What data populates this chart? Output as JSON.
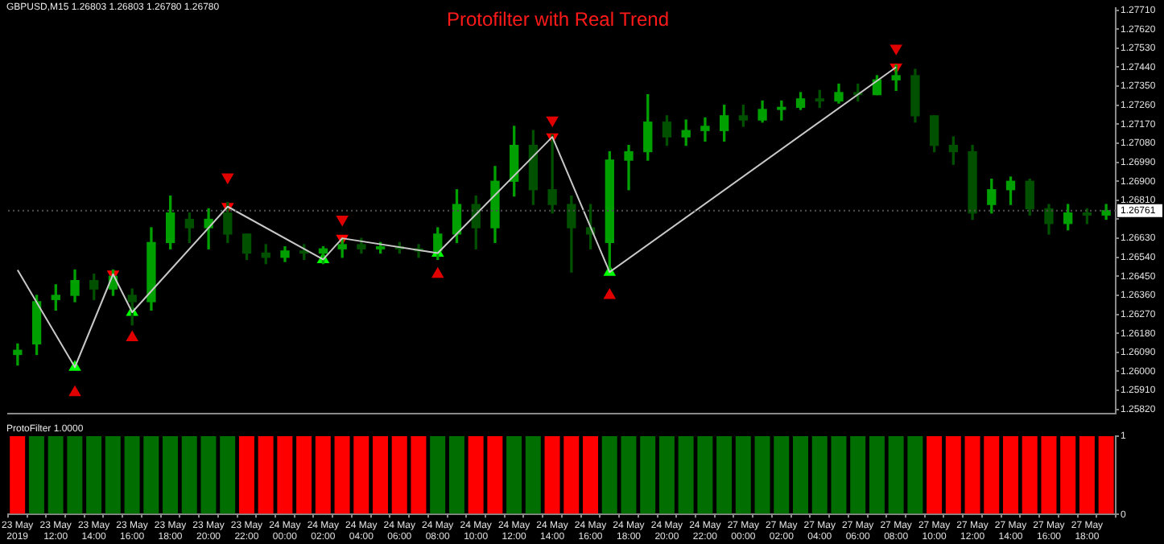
{
  "chart_data": [
    {
      "type": "candlestick",
      "title": "Protofilter with Real Trend",
      "subtitle": "GBPUSD,M15 1.26803 1.26803 1.26780 1.26780",
      "colors": [
        "#00a000",
        "#00a000",
        "#00a000",
        "#00a000",
        "#005000",
        "#00a000",
        "#005000",
        "#00a000",
        "#00a000",
        "#005000",
        "#00a000",
        "#005000",
        "#005000",
        "#005000",
        "#00a000",
        "#005000",
        "#00a000",
        "#00a000",
        "#005000",
        "#00a000",
        "#005000",
        "#005000",
        "#00a000",
        "#00a000",
        "#005000",
        "#00a000",
        "#00a000",
        "#005000",
        "#005000",
        "#005000",
        "#005000",
        "#00a000",
        "#00a000",
        "#00a000",
        "#005000",
        "#00a000",
        "#00a000",
        "#00a000",
        "#005000",
        "#00a000",
        "#00a000",
        "#00a000",
        "#005000",
        "#00a000",
        "#005000",
        "#00a000",
        "#00a000",
        "#005000",
        "#005000",
        "#005000",
        "#005000",
        "#00a000",
        "#00a000",
        "#005000",
        "#005000",
        "#00a000",
        "#005000",
        "#00a000"
      ],
      "ohlc": [
        [
          1.2608,
          1.2613,
          1.2603,
          1.261
        ],
        [
          1.2613,
          1.2636,
          1.2608,
          1.2633
        ],
        [
          1.2634,
          1.2641,
          1.2629,
          1.2636
        ],
        [
          1.2636,
          1.2648,
          1.2633,
          1.2643
        ],
        [
          1.2643,
          1.2646,
          1.2634,
          1.2639
        ],
        [
          1.2639,
          1.2648,
          1.2636,
          1.2645
        ],
        [
          1.2636,
          1.2639,
          1.2622,
          1.2633
        ],
        [
          1.2633,
          1.2668,
          1.2629,
          1.2661
        ],
        [
          1.2661,
          1.2683,
          1.2658,
          1.2675
        ],
        [
          1.2672,
          1.2675,
          1.2661,
          1.2668
        ],
        [
          1.2668,
          1.2677,
          1.2658,
          1.2672
        ],
        [
          1.2675,
          1.268,
          1.2661,
          1.2665
        ],
        [
          1.2665,
          1.2665,
          1.2653,
          1.2656
        ],
        [
          1.2656,
          1.266,
          1.2651,
          1.2654
        ],
        [
          1.2654,
          1.2659,
          1.2652,
          1.2657
        ],
        [
          1.2657,
          1.266,
          1.2653,
          1.2656
        ],
        [
          1.2656,
          1.2659,
          1.2651,
          1.2658
        ],
        [
          1.2658,
          1.2663,
          1.2654,
          1.266
        ],
        [
          1.266,
          1.2663,
          1.2656,
          1.2658
        ],
        [
          1.2658,
          1.2661,
          1.2656,
          1.2659
        ],
        [
          1.2659,
          1.2661,
          1.2656,
          1.2658
        ],
        [
          1.2658,
          1.266,
          1.2654,
          1.2657
        ],
        [
          1.2657,
          1.2668,
          1.2653,
          1.2665
        ],
        [
          1.2665,
          1.2686,
          1.2661,
          1.2679
        ],
        [
          1.2679,
          1.2683,
          1.2658,
          1.2668
        ],
        [
          1.2668,
          1.2697,
          1.2661,
          1.269
        ],
        [
          1.269,
          1.2716,
          1.2683,
          1.2707
        ],
        [
          1.2707,
          1.2714,
          1.2679,
          1.2686
        ],
        [
          1.2686,
          1.2712,
          1.2675,
          1.2679
        ],
        [
          1.2679,
          1.2683,
          1.2647,
          1.2668
        ],
        [
          1.2668,
          1.2679,
          1.2658,
          1.2665
        ],
        [
          1.2661,
          1.2704,
          1.2648,
          1.27
        ],
        [
          1.27,
          1.2707,
          1.2686,
          1.2704
        ],
        [
          1.2704,
          1.2731,
          1.27,
          1.2718
        ],
        [
          1.2718,
          1.2721,
          1.2707,
          1.2711
        ],
        [
          1.2711,
          1.2719,
          1.2707,
          1.2714
        ],
        [
          1.2714,
          1.272,
          1.2709,
          1.2716
        ],
        [
          1.2714,
          1.2726,
          1.2709,
          1.2721
        ],
        [
          1.2721,
          1.2726,
          1.2716,
          1.2719
        ],
        [
          1.2719,
          1.2728,
          1.2718,
          1.2724
        ],
        [
          1.2724,
          1.2728,
          1.2719,
          1.2725
        ],
        [
          1.2725,
          1.2732,
          1.2724,
          1.2729
        ],
        [
          1.2729,
          1.2733,
          1.2725,
          1.2728
        ],
        [
          1.2728,
          1.2736,
          1.2727,
          1.2732
        ],
        [
          1.2732,
          1.2736,
          1.2728,
          1.2731
        ],
        [
          1.2731,
          1.274,
          1.2731,
          1.2738
        ],
        [
          1.2738,
          1.2745,
          1.2733,
          1.274
        ],
        [
          1.274,
          1.2743,
          1.2718,
          1.2721
        ],
        [
          1.2721,
          1.2721,
          1.2704,
          1.2707
        ],
        [
          1.2707,
          1.2711,
          1.2698,
          1.2704
        ],
        [
          1.2704,
          1.2707,
          1.2672,
          1.2675
        ],
        [
          1.2679,
          1.2691,
          1.2675,
          1.2686
        ],
        [
          1.2686,
          1.2692,
          1.2679,
          1.269
        ],
        [
          1.269,
          1.2691,
          1.2674,
          1.2677
        ],
        [
          1.2677,
          1.2679,
          1.2665,
          1.267
        ],
        [
          1.267,
          1.2679,
          1.2667,
          1.2675
        ],
        [
          1.2675,
          1.2677,
          1.267,
          1.2674
        ],
        [
          1.2674,
          1.2679,
          1.2672,
          1.26761
        ]
      ],
      "series": [
        {
          "type": "line",
          "color": "#c8c8c8",
          "marker": "none",
          "values": [
            1.2648,
            null,
            null,
            1.2602,
            null,
            1.2646,
            1.2628,
            null,
            null,
            null,
            null,
            1.2678,
            null,
            null,
            null,
            null,
            1.2653,
            1.2663,
            null,
            null,
            null,
            null,
            1.2656,
            null,
            null,
            null,
            null,
            null,
            1.2711,
            null,
            null,
            1.2647,
            null,
            null,
            null,
            null,
            null,
            null,
            null,
            null,
            null,
            null,
            null,
            null,
            null,
            null,
            1.2744,
            null,
            null,
            null,
            null,
            null,
            null,
            null,
            null,
            null,
            null,
            null
          ]
        },
        {
          "type": "scatter",
          "marker": "triangle",
          "values": [
            null,
            null,
            null,
            1.2602,
            null,
            1.2646,
            1.2628,
            null,
            null,
            null,
            null,
            1.2678,
            null,
            null,
            null,
            null,
            1.2653,
            1.2663,
            null,
            null,
            null,
            null,
            1.2656,
            null,
            null,
            null,
            null,
            null,
            1.2711,
            null,
            null,
            1.2647,
            null,
            null,
            null,
            null,
            null,
            null,
            null,
            null,
            null,
            null,
            null,
            null,
            null,
            null,
            1.2744,
            null,
            null,
            null,
            null,
            null,
            null,
            null,
            null,
            null,
            null,
            null
          ],
          "colors": [
            null,
            null,
            null,
            "#00ff00",
            null,
            "#ff0000",
            "#00ff00",
            null,
            null,
            null,
            null,
            "#ff0000",
            null,
            null,
            null,
            null,
            "#00ff00",
            "#ff0000",
            null,
            null,
            null,
            null,
            "#00ff00",
            null,
            null,
            null,
            null,
            null,
            "#ff0000",
            null,
            null,
            "#00ff00",
            null,
            null,
            null,
            null,
            null,
            null,
            null,
            null,
            null,
            null,
            null,
            null,
            null,
            null,
            "#ff0000",
            null,
            null,
            null,
            null,
            null,
            null,
            null,
            null,
            null,
            null,
            null
          ]
        },
        {
          "type": "scatter",
          "marker": "triangle",
          "color": "#e00000",
          "values": [
            null,
            null,
            null,
            1.259,
            null,
            null,
            1.2616,
            null,
            null,
            null,
            null,
            1.2692,
            null,
            null,
            null,
            null,
            null,
            1.2672,
            null,
            null,
            null,
            null,
            1.2646,
            null,
            null,
            null,
            null,
            null,
            1.2719,
            null,
            null,
            1.2636,
            null,
            null,
            null,
            null,
            null,
            null,
            null,
            null,
            null,
            null,
            null,
            null,
            null,
            null,
            1.2753,
            null,
            null,
            null,
            null,
            null,
            null,
            null,
            null,
            null,
            null,
            null
          ]
        }
      ],
      "ylim": [
        1.258,
        1.2772
      ],
      "yticks": [
        {
          "value": 1.2582,
          "label": "1.25820"
        },
        {
          "value": 1.2591,
          "label": "1.25910"
        },
        {
          "value": 1.26,
          "label": "1.26000"
        },
        {
          "value": 1.2609,
          "label": "1.26090"
        },
        {
          "value": 1.2618,
          "label": "1.26180"
        },
        {
          "value": 1.2627,
          "label": "1.26270"
        },
        {
          "value": 1.2636,
          "label": "1.26360"
        },
        {
          "value": 1.2645,
          "label": "1.26450"
        },
        {
          "value": 1.2654,
          "label": "1.26540"
        },
        {
          "value": 1.2663,
          "label": "1.26630"
        },
        {
          "value": 1.2672,
          "label": null
        },
        {
          "value": 1.2681,
          "label": "1.26810"
        },
        {
          "value": 1.269,
          "label": "1.26900"
        },
        {
          "value": 1.2699,
          "label": "1.26990"
        },
        {
          "value": 1.2708,
          "label": "1.27080"
        },
        {
          "value": 1.2717,
          "label": "1.27170"
        },
        {
          "value": 1.2726,
          "label": "1.27260"
        },
        {
          "value": 1.2735,
          "label": "1.27350"
        },
        {
          "value": 1.2744,
          "label": "1.27440"
        },
        {
          "value": 1.2753,
          "label": "1.27530"
        },
        {
          "value": 1.2762,
          "label": "1.27620"
        },
        {
          "value": 1.2771,
          "label": "1.27710"
        }
      ],
      "ref_lines": [
        {
          "axis": "y",
          "value": 1.26761,
          "label": "1.26761",
          "color": "#505050",
          "line_style": "dotted"
        }
      ],
      "tick_labels": "y"
    },
    {
      "type": "bar",
      "title": "ProtoFilter 1.0000",
      "categories": [
        "23 May 2019",
        null,
        "23 May 12:00",
        null,
        "23 May 14:00",
        null,
        "23 May 16:00",
        null,
        "23 May 18:00",
        null,
        "23 May 20:00",
        null,
        "23 May 22:00",
        null,
        "24 May 00:00",
        null,
        "24 May 02:00",
        null,
        "24 May 04:00",
        null,
        "24 May 06:00",
        null,
        "24 May 08:00",
        null,
        "24 May 10:00",
        null,
        "24 May 12:00",
        null,
        "24 May 14:00",
        null,
        "24 May 16:00",
        null,
        "24 May 18:00",
        null,
        "24 May 20:00",
        null,
        "24 May 22:00",
        null,
        "27 May 00:00",
        null,
        "27 May 02:00",
        null,
        "27 May 04:00",
        null,
        "27 May 06:00",
        null,
        "27 May 08:00",
        null,
        "27 May 10:00",
        null,
        "27 May 12:00",
        null,
        "27 May 14:00",
        null,
        "27 May 16:00",
        null,
        "27 May 18:00",
        null
      ],
      "values": [
        1,
        1,
        1,
        1,
        1,
        1,
        1,
        1,
        1,
        1,
        1,
        1,
        1,
        1,
        1,
        1,
        1,
        1,
        1,
        1,
        1,
        1,
        1,
        1,
        1,
        1,
        1,
        1,
        1,
        1,
        1,
        1,
        1,
        1,
        1,
        1,
        1,
        1,
        1,
        1,
        1,
        1,
        1,
        1,
        1,
        1,
        1,
        1,
        1,
        1,
        1,
        1,
        1,
        1,
        1,
        1,
        1,
        1
      ],
      "colors": [
        "#ff0000",
        "#006e00",
        "#006e00",
        "#006e00",
        "#006e00",
        "#006e00",
        "#006e00",
        "#006e00",
        "#006e00",
        "#006e00",
        "#006e00",
        "#006e00",
        "#ff0000",
        "#ff0000",
        "#ff0000",
        "#ff0000",
        "#ff0000",
        "#ff0000",
        "#ff0000",
        "#ff0000",
        "#ff0000",
        "#ff0000",
        "#006e00",
        "#006e00",
        "#ff0000",
        "#ff0000",
        "#006e00",
        "#006e00",
        "#ff0000",
        "#ff0000",
        "#ff0000",
        "#006e00",
        "#006e00",
        "#006e00",
        "#006e00",
        "#006e00",
        "#006e00",
        "#006e00",
        "#006e00",
        "#006e00",
        "#006e00",
        "#006e00",
        "#006e00",
        "#006e00",
        "#006e00",
        "#006e00",
        "#006e00",
        "#006e00",
        "#ff0000",
        "#ff0000",
        "#ff0000",
        "#ff0000",
        "#ff0000",
        "#ff0000",
        "#ff0000",
        "#ff0000",
        "#ff0000",
        "#ff0000"
      ],
      "ylim": [
        0,
        1
      ],
      "yticks": [
        0,
        1
      ]
    }
  ]
}
